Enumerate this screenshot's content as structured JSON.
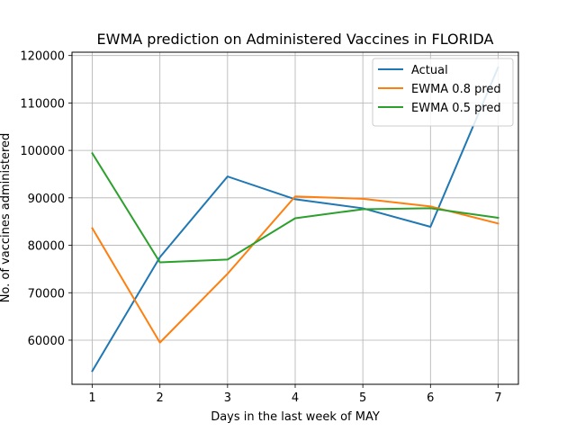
{
  "chart_data": {
    "type": "line",
    "title": "EWMA prediction on Administered Vaccines in FLORIDA",
    "xlabel": "Days in the last week of MAY",
    "ylabel": "No. of vaccines administered",
    "x": [
      1,
      2,
      3,
      4,
      5,
      6,
      7
    ],
    "xlim": [
      0.7,
      7.3
    ],
    "ylim": [
      50700,
      120700
    ],
    "xticks": [
      1,
      2,
      3,
      4,
      5,
      6,
      7
    ],
    "yticks": [
      60000,
      70000,
      80000,
      90000,
      100000,
      110000,
      120000
    ],
    "grid": true,
    "legend_position": "top-right",
    "series": [
      {
        "name": "Actual",
        "color": "#1f77b4",
        "values": [
          53500,
          77500,
          94500,
          89700,
          87800,
          83900,
          117500
        ]
      },
      {
        "name": "EWMA 0.8 pred",
        "color": "#ff7f0e",
        "values": [
          83600,
          59500,
          74000,
          90300,
          89800,
          88200,
          84600
        ]
      },
      {
        "name": "EWMA 0.5 pred",
        "color": "#2ca02c",
        "values": [
          99400,
          76400,
          77000,
          85700,
          87600,
          87800,
          85800
        ]
      }
    ]
  }
}
